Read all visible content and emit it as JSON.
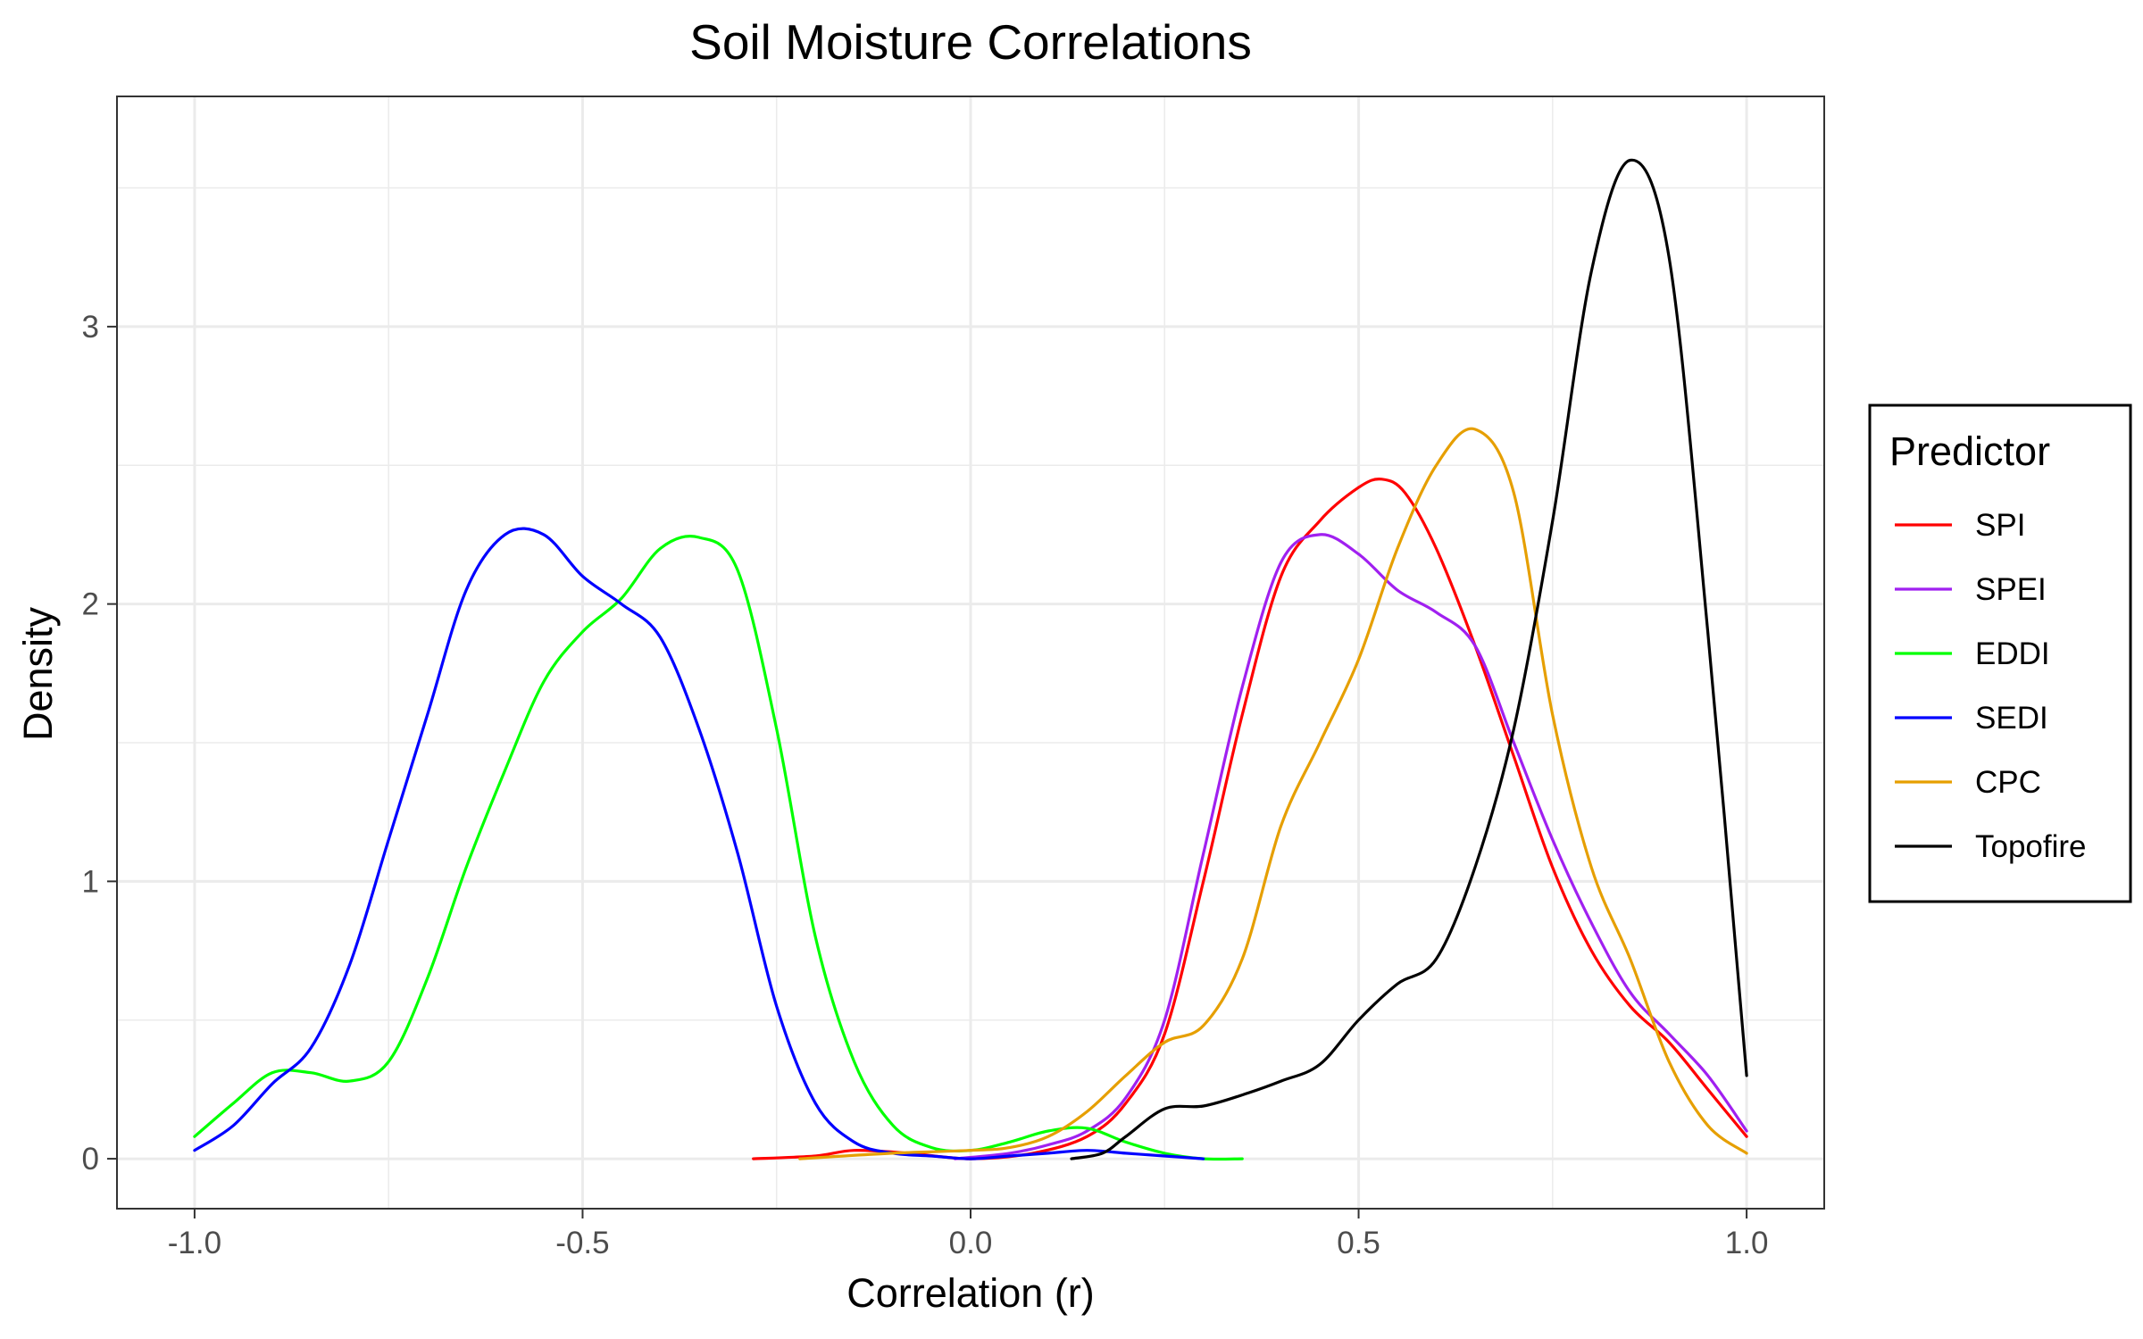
{
  "chart_data": {
    "type": "line",
    "title": "Soil Moisture Correlations",
    "xlabel": "Correlation (r)",
    "ylabel": "Density",
    "xlim": [
      -1.1,
      1.1
    ],
    "ylim": [
      -0.18,
      3.83
    ],
    "x_ticks": [
      -1.0,
      -0.5,
      0.0,
      0.5,
      1.0
    ],
    "x_tick_labels": [
      "-1.0",
      "-0.5",
      "0.0",
      "0.5",
      "1.0"
    ],
    "y_ticks": [
      0,
      1,
      2,
      3
    ],
    "y_tick_labels": [
      "0",
      "1",
      "2",
      "3"
    ],
    "grid": true,
    "legend": {
      "title": "Predictor",
      "position": "right"
    },
    "series": [
      {
        "name": "SPI",
        "color": "#ff0000",
        "points": [
          [
            -0.28,
            0.0
          ],
          [
            -0.2,
            0.01
          ],
          [
            -0.15,
            0.03
          ],
          [
            -0.08,
            0.02
          ],
          [
            0.0,
            0.0
          ],
          [
            0.08,
            0.02
          ],
          [
            0.15,
            0.08
          ],
          [
            0.2,
            0.2
          ],
          [
            0.25,
            0.45
          ],
          [
            0.3,
            1.0
          ],
          [
            0.35,
            1.6
          ],
          [
            0.4,
            2.1
          ],
          [
            0.45,
            2.3
          ],
          [
            0.5,
            2.42
          ],
          [
            0.53,
            2.45
          ],
          [
            0.56,
            2.4
          ],
          [
            0.6,
            2.2
          ],
          [
            0.65,
            1.85
          ],
          [
            0.7,
            1.45
          ],
          [
            0.75,
            1.05
          ],
          [
            0.8,
            0.75
          ],
          [
            0.85,
            0.55
          ],
          [
            0.9,
            0.42
          ],
          [
            0.95,
            0.25
          ],
          [
            1.0,
            0.08
          ]
        ]
      },
      {
        "name": "SPEI",
        "color": "#a020f0",
        "points": [
          [
            -0.02,
            0.0
          ],
          [
            0.05,
            0.02
          ],
          [
            0.1,
            0.05
          ],
          [
            0.15,
            0.1
          ],
          [
            0.2,
            0.22
          ],
          [
            0.25,
            0.5
          ],
          [
            0.3,
            1.1
          ],
          [
            0.35,
            1.7
          ],
          [
            0.4,
            2.15
          ],
          [
            0.45,
            2.25
          ],
          [
            0.5,
            2.18
          ],
          [
            0.55,
            2.05
          ],
          [
            0.6,
            1.97
          ],
          [
            0.65,
            1.85
          ],
          [
            0.7,
            1.5
          ],
          [
            0.75,
            1.15
          ],
          [
            0.8,
            0.85
          ],
          [
            0.85,
            0.6
          ],
          [
            0.9,
            0.45
          ],
          [
            0.95,
            0.3
          ],
          [
            1.0,
            0.1
          ]
        ]
      },
      {
        "name": "EDDI",
        "color": "#00ff00",
        "points": [
          [
            -1.0,
            0.08
          ],
          [
            -0.95,
            0.2
          ],
          [
            -0.9,
            0.31
          ],
          [
            -0.85,
            0.31
          ],
          [
            -0.8,
            0.28
          ],
          [
            -0.75,
            0.35
          ],
          [
            -0.7,
            0.65
          ],
          [
            -0.65,
            1.05
          ],
          [
            -0.6,
            1.4
          ],
          [
            -0.55,
            1.72
          ],
          [
            -0.5,
            1.9
          ],
          [
            -0.45,
            2.02
          ],
          [
            -0.4,
            2.2
          ],
          [
            -0.35,
            2.24
          ],
          [
            -0.3,
            2.12
          ],
          [
            -0.25,
            1.55
          ],
          [
            -0.2,
            0.8
          ],
          [
            -0.15,
            0.35
          ],
          [
            -0.1,
            0.12
          ],
          [
            -0.05,
            0.04
          ],
          [
            0.0,
            0.03
          ],
          [
            0.05,
            0.06
          ],
          [
            0.1,
            0.1
          ],
          [
            0.15,
            0.11
          ],
          [
            0.2,
            0.06
          ],
          [
            0.25,
            0.02
          ],
          [
            0.3,
            0.0
          ],
          [
            0.35,
            0.0
          ]
        ]
      },
      {
        "name": "SEDI",
        "color": "#0000ff",
        "points": [
          [
            -1.0,
            0.03
          ],
          [
            -0.95,
            0.12
          ],
          [
            -0.9,
            0.27
          ],
          [
            -0.85,
            0.4
          ],
          [
            -0.8,
            0.7
          ],
          [
            -0.75,
            1.15
          ],
          [
            -0.7,
            1.6
          ],
          [
            -0.65,
            2.05
          ],
          [
            -0.6,
            2.25
          ],
          [
            -0.55,
            2.25
          ],
          [
            -0.5,
            2.1
          ],
          [
            -0.45,
            2.0
          ],
          [
            -0.4,
            1.88
          ],
          [
            -0.35,
            1.55
          ],
          [
            -0.3,
            1.1
          ],
          [
            -0.25,
            0.55
          ],
          [
            -0.2,
            0.2
          ],
          [
            -0.15,
            0.06
          ],
          [
            -0.1,
            0.02
          ],
          [
            -0.05,
            0.01
          ],
          [
            0.0,
            0.0
          ],
          [
            0.05,
            0.01
          ],
          [
            0.1,
            0.02
          ],
          [
            0.15,
            0.03
          ],
          [
            0.2,
            0.02
          ],
          [
            0.25,
            0.01
          ],
          [
            0.3,
            0.0
          ]
        ]
      },
      {
        "name": "CPC",
        "color": "#e69f00",
        "points": [
          [
            -0.22,
            0.0
          ],
          [
            -0.1,
            0.02
          ],
          [
            0.0,
            0.03
          ],
          [
            0.05,
            0.04
          ],
          [
            0.1,
            0.08
          ],
          [
            0.15,
            0.17
          ],
          [
            0.2,
            0.3
          ],
          [
            0.25,
            0.42
          ],
          [
            0.3,
            0.48
          ],
          [
            0.35,
            0.72
          ],
          [
            0.4,
            1.2
          ],
          [
            0.45,
            1.5
          ],
          [
            0.5,
            1.8
          ],
          [
            0.55,
            2.2
          ],
          [
            0.6,
            2.5
          ],
          [
            0.65,
            2.63
          ],
          [
            0.7,
            2.4
          ],
          [
            0.75,
            1.6
          ],
          [
            0.8,
            1.05
          ],
          [
            0.85,
            0.72
          ],
          [
            0.9,
            0.35
          ],
          [
            0.95,
            0.12
          ],
          [
            1.0,
            0.02
          ]
        ]
      },
      {
        "name": "Topofire",
        "color": "#000000",
        "points": [
          [
            0.13,
            0.0
          ],
          [
            0.17,
            0.02
          ],
          [
            0.2,
            0.08
          ],
          [
            0.25,
            0.18
          ],
          [
            0.3,
            0.19
          ],
          [
            0.35,
            0.23
          ],
          [
            0.4,
            0.28
          ],
          [
            0.45,
            0.34
          ],
          [
            0.5,
            0.5
          ],
          [
            0.55,
            0.63
          ],
          [
            0.6,
            0.72
          ],
          [
            0.65,
            1.05
          ],
          [
            0.7,
            1.55
          ],
          [
            0.75,
            2.3
          ],
          [
            0.8,
            3.2
          ],
          [
            0.85,
            3.6
          ],
          [
            0.9,
            3.25
          ],
          [
            0.95,
            1.9
          ],
          [
            1.0,
            0.3
          ]
        ]
      }
    ]
  }
}
